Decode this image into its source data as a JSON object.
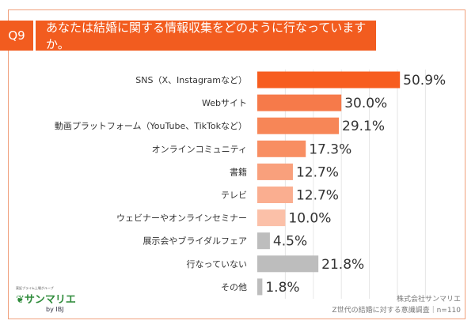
{
  "header": {
    "q": "Q9",
    "title": "あなたは結婚に関する情報収集をどのように行なっていますか。"
  },
  "chart_data": {
    "type": "bar",
    "orientation": "horizontal",
    "categories": [
      "SNS（X、Instagramなど）",
      "Webサイト",
      "動画プラットフォーム（YouTube、TikTokなど）",
      "オンラインコミュニティ",
      "書籍",
      "テレビ",
      "ウェビナーやオンラインセミナー",
      "展示会やブライダルフェア",
      "行なっていない",
      "その他"
    ],
    "values": [
      50.9,
      30.0,
      29.1,
      17.3,
      12.7,
      12.7,
      10.0,
      4.5,
      21.8,
      1.8
    ],
    "value_labels": [
      "50.9%",
      "30.0%",
      "29.1%",
      "17.3%",
      "12.7%",
      "12.7%",
      "10.0%",
      "4.5%",
      "21.8%",
      "1.8%"
    ],
    "colors": [
      "#f75d1f",
      "#f67a4a",
      "#f78657",
      "#f88e62",
      "#f9a07c",
      "#faae90",
      "#fbc0a8",
      "#bdbdbd",
      "#bdbdbd",
      "#bdbdbd"
    ],
    "xlim": [
      0,
      60
    ],
    "grid": true
  },
  "logo": {
    "sub": "東証プライム上場グループ",
    "name": "サンマリエ",
    "by": "by IBJ"
  },
  "credit": {
    "company": "株式会社サンマリエ",
    "survey": "Z世代の結婚に対する意識調査｜n=110"
  }
}
